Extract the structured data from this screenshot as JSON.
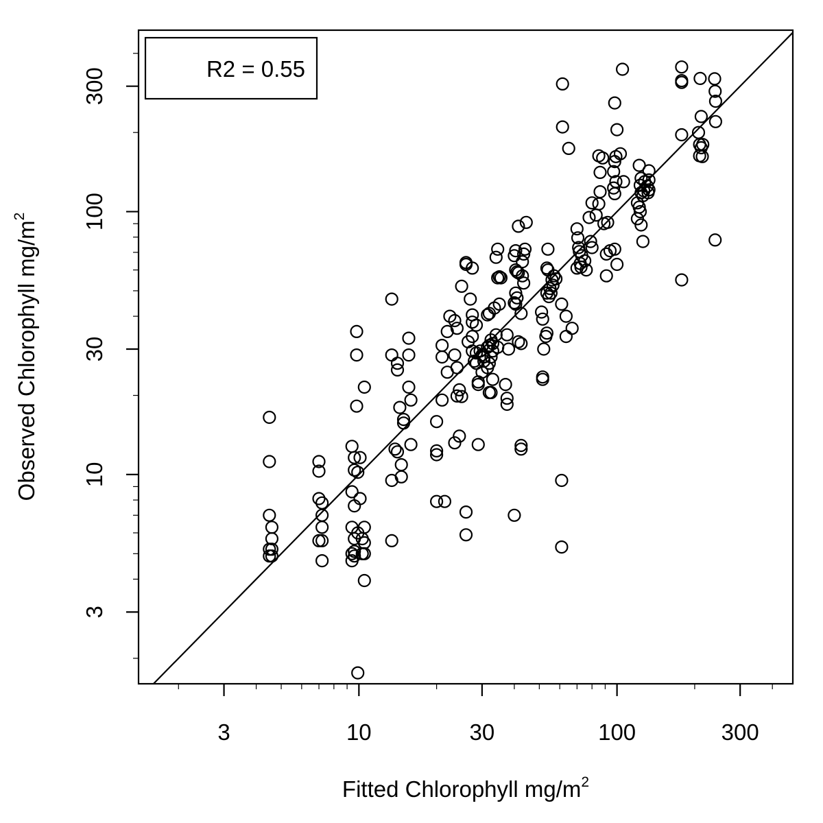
{
  "chart_data": {
    "type": "scatter",
    "xlabel": "Fitted Chlorophyll  mg/m",
    "xlabel_sup": "2",
    "ylabel": "Observed Chlorophyll  mg/m",
    "ylabel_sup": "2",
    "x_scale": "log",
    "y_scale": "log",
    "xlim": [
      1.4,
      480
    ],
    "ylim": [
      1.6,
      490
    ],
    "x_ticks": [
      3,
      10,
      30,
      100,
      300
    ],
    "x_tick_labels": [
      "3",
      "10",
      "30",
      "100",
      "300"
    ],
    "y_ticks": [
      3,
      10,
      30,
      100,
      300
    ],
    "y_tick_labels": [
      "3",
      "10",
      "30",
      "100",
      "300"
    ],
    "minor_ticks": true,
    "grid": false,
    "reference_line": "1:1",
    "legend": {
      "text": "R2 = 0.55",
      "placement": "top-left"
    },
    "marker": "open-circle",
    "color": "#000000",
    "points": [
      [
        4.5,
        16.5
      ],
      [
        4.5,
        11.2
      ],
      [
        4.5,
        7.0
      ],
      [
        4.6,
        6.3
      ],
      [
        4.6,
        5.7
      ],
      [
        4.5,
        5.2
      ],
      [
        4.6,
        5.2
      ],
      [
        4.5,
        4.9
      ],
      [
        4.6,
        4.9
      ],
      [
        7.0,
        11.2
      ],
      [
        7.0,
        10.3
      ],
      [
        7.0,
        8.1
      ],
      [
        7.2,
        7.8
      ],
      [
        7.2,
        7.0
      ],
      [
        7.2,
        6.3
      ],
      [
        7.0,
        5.6
      ],
      [
        7.2,
        5.6
      ],
      [
        7.2,
        4.7
      ],
      [
        9.4,
        12.8
      ],
      [
        9.6,
        11.6
      ],
      [
        10.1,
        11.6
      ],
      [
        9.6,
        10.4
      ],
      [
        9.9,
        10.2
      ],
      [
        9.4,
        8.6
      ],
      [
        9.6,
        7.6
      ],
      [
        10.1,
        8.1
      ],
      [
        9.4,
        6.3
      ],
      [
        9.9,
        6.0
      ],
      [
        10.5,
        6.3
      ],
      [
        9.6,
        5.7
      ],
      [
        10.3,
        5.7
      ],
      [
        10.5,
        5.5
      ],
      [
        9.6,
        5.1
      ],
      [
        9.4,
        5.0
      ],
      [
        9.6,
        4.9
      ],
      [
        10.3,
        5.0
      ],
      [
        10.5,
        5.0
      ],
      [
        9.4,
        4.7
      ],
      [
        10.5,
        3.95
      ],
      [
        9.9,
        1.76
      ],
      [
        9.8,
        35.0
      ],
      [
        9.8,
        28.5
      ],
      [
        9.8,
        18.2
      ],
      [
        10.5,
        21.5
      ],
      [
        13.4,
        46.5
      ],
      [
        13.4,
        28.5
      ],
      [
        14.1,
        26.5
      ],
      [
        14.1,
        25.0
      ],
      [
        14.4,
        18.0
      ],
      [
        14.9,
        15.7
      ],
      [
        14.9,
        16.2
      ],
      [
        14.6,
        10.9
      ],
      [
        14.6,
        9.8
      ],
      [
        13.8,
        12.5
      ],
      [
        13.4,
        9.5
      ],
      [
        14.1,
        12.2
      ],
      [
        15.6,
        33.0
      ],
      [
        15.6,
        28.5
      ],
      [
        15.6,
        21.5
      ],
      [
        15.9,
        19.2
      ],
      [
        15.9,
        13.0
      ],
      [
        13.4,
        5.6
      ],
      [
        20.0,
        15.9
      ],
      [
        20.0,
        12.3
      ],
      [
        20.0,
        11.9
      ],
      [
        21.0,
        31.0
      ],
      [
        21.0,
        28.0
      ],
      [
        21.0,
        19.2
      ],
      [
        22.0,
        24.5
      ],
      [
        22.0,
        35.0
      ],
      [
        22.5,
        40.0
      ],
      [
        23.5,
        38.5
      ],
      [
        24.0,
        36.0
      ],
      [
        24.5,
        21.0
      ],
      [
        24.0,
        19.9
      ],
      [
        23.5,
        13.2
      ],
      [
        24.5,
        14.0
      ],
      [
        25.0,
        52.0
      ],
      [
        26.5,
        32.0
      ],
      [
        27.5,
        33.5
      ],
      [
        27.5,
        38.0
      ],
      [
        28.5,
        37.0
      ],
      [
        23.5,
        28.5
      ],
      [
        24.0,
        25.5
      ],
      [
        26.0,
        63.0
      ],
      [
        26.0,
        64.0
      ],
      [
        27.5,
        61.0
      ],
      [
        27.0,
        46.5
      ],
      [
        27.5,
        40.5
      ],
      [
        20.0,
        7.9
      ],
      [
        21.5,
        7.9
      ],
      [
        25.0,
        19.8
      ],
      [
        26.0,
        7.2
      ],
      [
        26.0,
        5.9
      ],
      [
        29.0,
        13.0
      ],
      [
        28.5,
        29.0
      ],
      [
        29.5,
        29.5
      ],
      [
        30.0,
        28.5
      ],
      [
        30.5,
        28.0
      ],
      [
        31.5,
        30.5
      ],
      [
        32.0,
        31.0
      ],
      [
        32.5,
        32.5
      ],
      [
        33.0,
        31.5
      ],
      [
        33.0,
        29.5
      ],
      [
        32.5,
        28.0
      ],
      [
        32.0,
        26.5
      ],
      [
        31.5,
        25.5
      ],
      [
        30.5,
        27.0
      ],
      [
        30.0,
        24.5
      ],
      [
        29.0,
        22.5
      ],
      [
        29.0,
        22.0
      ],
      [
        28.5,
        26.5
      ],
      [
        27.5,
        29.5
      ],
      [
        28.0,
        27.0
      ],
      [
        32.5,
        20.5
      ],
      [
        32.0,
        20.5
      ],
      [
        33.0,
        23.0
      ],
      [
        34.0,
        34.0
      ],
      [
        35.0,
        44.5
      ],
      [
        32.0,
        41.0
      ],
      [
        31.5,
        40.5
      ],
      [
        33.5,
        43.0
      ],
      [
        34.5,
        30.5
      ],
      [
        35.5,
        56.0
      ],
      [
        34.5,
        56.0
      ],
      [
        35.0,
        56.5
      ],
      [
        34.0,
        67.0
      ],
      [
        34.5,
        72.0
      ],
      [
        37.5,
        34.0
      ],
      [
        38.0,
        30.0
      ],
      [
        37.0,
        22.0
      ],
      [
        37.5,
        19.5
      ],
      [
        37.5,
        18.5
      ],
      [
        40.5,
        71.0
      ],
      [
        40.0,
        68.0
      ],
      [
        40.5,
        60.0
      ],
      [
        41.0,
        59.0
      ],
      [
        41.5,
        58.5
      ],
      [
        43.0,
        57.0
      ],
      [
        43.0,
        64.5
      ],
      [
        44.0,
        72.0
      ],
      [
        43.5,
        69.0
      ],
      [
        41.5,
        88.0
      ],
      [
        44.5,
        91.0
      ],
      [
        40.5,
        49.0
      ],
      [
        40.0,
        45.0
      ],
      [
        40.5,
        44.5
      ],
      [
        41.0,
        47.0
      ],
      [
        41.5,
        32.0
      ],
      [
        42.5,
        31.5
      ],
      [
        42.5,
        41.0
      ],
      [
        43.5,
        53.5
      ],
      [
        42.5,
        12.9
      ],
      [
        42.5,
        12.5
      ],
      [
        40.0,
        7.0
      ],
      [
        51.0,
        41.5
      ],
      [
        51.5,
        39.0
      ],
      [
        53.0,
        33.5
      ],
      [
        53.5,
        34.5
      ],
      [
        52.0,
        30.0
      ],
      [
        51.5,
        23.5
      ],
      [
        51.5,
        23.0
      ],
      [
        53.5,
        49.0
      ],
      [
        55.0,
        51.0
      ],
      [
        54.5,
        47.5
      ],
      [
        55.5,
        49.0
      ],
      [
        57.0,
        57.0
      ],
      [
        58.0,
        55.5
      ],
      [
        56.5,
        52.5
      ],
      [
        56.0,
        55.0
      ],
      [
        53.5,
        61.0
      ],
      [
        54.0,
        60.0
      ],
      [
        54.0,
        72.0
      ],
      [
        61.0,
        44.5
      ],
      [
        63.5,
        40.0
      ],
      [
        63.5,
        33.5
      ],
      [
        67.0,
        36.0
      ],
      [
        61.0,
        9.5
      ],
      [
        61.0,
        5.3
      ],
      [
        61.5,
        306.0
      ],
      [
        61.5,
        210.0
      ],
      [
        65.0,
        174.0
      ],
      [
        70.0,
        86.0
      ],
      [
        70.5,
        79.5
      ],
      [
        71.0,
        73.0
      ],
      [
        71.5,
        70.5
      ],
      [
        73.0,
        68.0
      ],
      [
        72.0,
        63.5
      ],
      [
        72.5,
        61.5
      ],
      [
        75.0,
        65.0
      ],
      [
        76.0,
        60.0
      ],
      [
        70.0,
        61.0
      ],
      [
        79.0,
        77.0
      ],
      [
        80.0,
        73.0
      ],
      [
        78.0,
        95.0
      ],
      [
        80.0,
        108.0
      ],
      [
        83.0,
        97.0
      ],
      [
        85.0,
        107.0
      ],
      [
        86.0,
        119.0
      ],
      [
        86.0,
        141.0
      ],
      [
        88.0,
        160.0
      ],
      [
        85.0,
        163.0
      ],
      [
        89.0,
        90.0
      ],
      [
        92.0,
        91.0
      ],
      [
        91.0,
        69.0
      ],
      [
        94.0,
        71.0
      ],
      [
        98.0,
        72.0
      ],
      [
        91.0,
        57.0
      ],
      [
        100.0,
        63.0
      ],
      [
        98.0,
        117.0
      ],
      [
        97.0,
        123.0
      ],
      [
        99.0,
        130.0
      ],
      [
        97.0,
        142.0
      ],
      [
        98.0,
        155.0
      ],
      [
        99.0,
        162.0
      ],
      [
        103.0,
        166.0
      ],
      [
        100.0,
        205.0
      ],
      [
        98.0,
        259.0
      ],
      [
        105.0,
        348.0
      ],
      [
        106.0,
        130.0
      ],
      [
        122.0,
        150.0
      ],
      [
        124.0,
        134.0
      ],
      [
        123.0,
        126.0
      ],
      [
        128.0,
        130.0
      ],
      [
        131.0,
        125.0
      ],
      [
        133.0,
        132.0
      ],
      [
        127.0,
        120.0
      ],
      [
        124.0,
        118.0
      ],
      [
        126.0,
        115.0
      ],
      [
        120.0,
        108.0
      ],
      [
        122.0,
        104.0
      ],
      [
        123.0,
        100.0
      ],
      [
        120.0,
        94.0
      ],
      [
        124.0,
        89.0
      ],
      [
        126.0,
        77.0
      ],
      [
        133.0,
        121.0
      ],
      [
        132.0,
        118.0
      ],
      [
        133.0,
        143.0
      ],
      [
        178.0,
        355.0
      ],
      [
        178.0,
        315.0
      ],
      [
        178.0,
        310.0
      ],
      [
        178.0,
        196.0
      ],
      [
        178.0,
        55.0
      ],
      [
        210.0,
        321.0
      ],
      [
        212.0,
        230.0
      ],
      [
        207.0,
        200.0
      ],
      [
        215.0,
        180.0
      ],
      [
        212.0,
        175.0
      ],
      [
        209.0,
        163.0
      ],
      [
        214.0,
        162.0
      ],
      [
        209.0,
        180.0
      ],
      [
        239.0,
        320.0
      ],
      [
        240.0,
        287.0
      ],
      [
        241.0,
        263.0
      ],
      [
        241.0,
        220.0
      ],
      [
        240.0,
        78.0
      ]
    ]
  }
}
